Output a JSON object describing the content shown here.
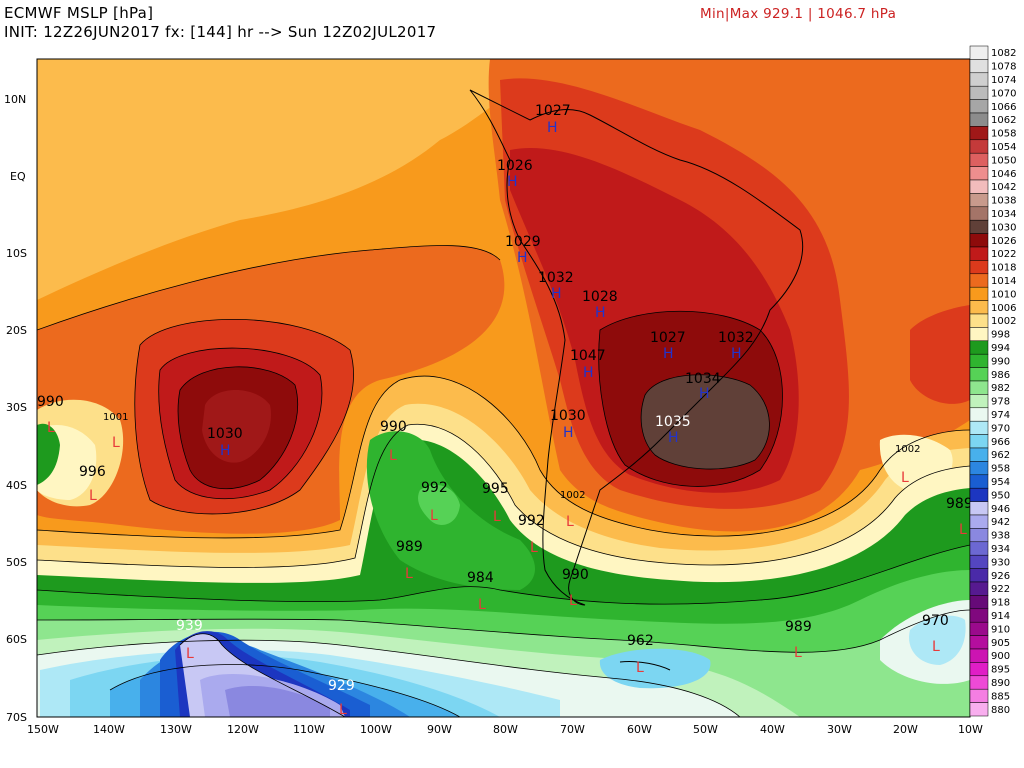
{
  "header": {
    "title": "ECMWF MSLP [hPa]",
    "init": "INIT: 12Z26JUN2017 fx: [144] hr --> Sun 12Z02JUL2017",
    "minmax": "Min|Max 929.1 | 1046.7 hPa"
  },
  "map": {
    "type": "contour map",
    "lon_range": [
      -150,
      -10
    ],
    "lat_range": [
      -70,
      15
    ],
    "lat_labels": [
      "10N",
      "EQ",
      "10S",
      "20S",
      "30S",
      "40S",
      "50S",
      "60S",
      "70S"
    ],
    "lon_labels": [
      "150W",
      "140W",
      "130W",
      "120W",
      "110W",
      "100W",
      "90W",
      "80W",
      "70W",
      "60W",
      "50W",
      "40W",
      "30W",
      "20W",
      "10W"
    ]
  },
  "pressure_labels": [
    {
      "text": "1027",
      "type": "H",
      "mark": "H"
    },
    {
      "text": "1026",
      "type": "H",
      "mark": "H"
    },
    {
      "text": "1029",
      "type": "H",
      "mark": "H"
    },
    {
      "text": "1032",
      "type": "H",
      "mark": "H"
    },
    {
      "text": "1028",
      "type": "H",
      "mark": "H"
    },
    {
      "text": "1027",
      "type": "H",
      "mark": "H"
    },
    {
      "text": "1032",
      "type": "H",
      "mark": "H"
    },
    {
      "text": "1047",
      "type": "H",
      "mark": "H"
    },
    {
      "text": "1034",
      "type": "H",
      "mark": "H"
    },
    {
      "text": "1030",
      "type": "H",
      "mark": "H"
    },
    {
      "text": "1035",
      "type": "H",
      "mark": "H"
    },
    {
      "text": "1030",
      "type": "H",
      "mark": "H"
    },
    {
      "text": "990",
      "type": "L",
      "mark": "L"
    },
    {
      "text": "1001",
      "type": "L",
      "mark": "L"
    },
    {
      "text": "996",
      "type": "L",
      "mark": "L"
    },
    {
      "text": "990",
      "type": "L",
      "mark": "L"
    },
    {
      "text": "992",
      "type": "L",
      "mark": "L"
    },
    {
      "text": "995",
      "type": "L",
      "mark": "L"
    },
    {
      "text": "1002",
      "type": "L",
      "mark": "L"
    },
    {
      "text": "992",
      "type": "L",
      "mark": "L"
    },
    {
      "text": "989",
      "type": "L",
      "mark": "L"
    },
    {
      "text": "984",
      "type": "L",
      "mark": "L"
    },
    {
      "text": "990",
      "type": "L",
      "mark": "L"
    },
    {
      "text": "1002",
      "type": "L",
      "mark": "L"
    },
    {
      "text": "989",
      "type": "L",
      "mark": "L"
    },
    {
      "text": "939",
      "type": "L",
      "mark": "L"
    },
    {
      "text": "929",
      "type": "L",
      "mark": "L"
    },
    {
      "text": "962",
      "type": "L",
      "mark": "L"
    },
    {
      "text": "989",
      "type": "L",
      "mark": "L"
    },
    {
      "text": "970",
      "type": "L",
      "mark": "L"
    }
  ],
  "colorbar": {
    "levels": [
      {
        "label": "1082",
        "color": "#efefef"
      },
      {
        "label": "1078",
        "color": "#e0e0e0"
      },
      {
        "label": "1074",
        "color": "#cfcfcf"
      },
      {
        "label": "1070",
        "color": "#bbbbbb"
      },
      {
        "label": "1066",
        "color": "#a6a6a6"
      },
      {
        "label": "1062",
        "color": "#8c8c8c"
      },
      {
        "label": "1058",
        "color": "#a01818"
      },
      {
        "label": "1054",
        "color": "#c43a3a"
      },
      {
        "label": "1050",
        "color": "#dd6060"
      },
      {
        "label": "1046",
        "color": "#ee8e8e"
      },
      {
        "label": "1042",
        "color": "#f2bcbc"
      },
      {
        "label": "1038",
        "color": "#c89a8c"
      },
      {
        "label": "1034",
        "color": "#a47468"
      },
      {
        "label": "1030",
        "color": "#604038"
      },
      {
        "label": "1026",
        "color": "#8e0b0b"
      },
      {
        "label": "1022",
        "color": "#c01a1a"
      },
      {
        "label": "1018",
        "color": "#dc3a1c"
      },
      {
        "label": "1014",
        "color": "#ec6a1e"
      },
      {
        "label": "1010",
        "color": "#f89a1c"
      },
      {
        "label": "1006",
        "color": "#fcbb4c"
      },
      {
        "label": "1002",
        "color": "#fde08a"
      },
      {
        "label": "998",
        "color": "#fff6c2"
      },
      {
        "label": "994",
        "color": "#1e9a1e"
      },
      {
        "label": "990",
        "color": "#2fb42f"
      },
      {
        "label": "986",
        "color": "#56d256"
      },
      {
        "label": "982",
        "color": "#8ee68e"
      },
      {
        "label": "978",
        "color": "#c0f2bc"
      },
      {
        "label": "974",
        "color": "#eaf8f0"
      },
      {
        "label": "970",
        "color": "#aee8f6"
      },
      {
        "label": "966",
        "color": "#7cd6f2"
      },
      {
        "label": "962",
        "color": "#48b0ec"
      },
      {
        "label": "958",
        "color": "#2c86e0"
      },
      {
        "label": "954",
        "color": "#1a5ed2"
      },
      {
        "label": "950",
        "color": "#1c36c0"
      },
      {
        "label": "946",
        "color": "#c8c8f4"
      },
      {
        "label": "942",
        "color": "#aaaaee"
      },
      {
        "label": "938",
        "color": "#8a88e0"
      },
      {
        "label": "934",
        "color": "#6c68d2"
      },
      {
        "label": "930",
        "color": "#5446c0"
      },
      {
        "label": "926",
        "color": "#4a2aa8"
      },
      {
        "label": "922",
        "color": "#561a90"
      },
      {
        "label": "918",
        "color": "#660a78"
      },
      {
        "label": "914",
        "color": "#80087e"
      },
      {
        "label": "910",
        "color": "#9a0a8c"
      },
      {
        "label": "905",
        "color": "#b40e9e"
      },
      {
        "label": "900",
        "color": "#cc14b2"
      },
      {
        "label": "895",
        "color": "#e01ec6"
      },
      {
        "label": "890",
        "color": "#ee4ad6"
      },
      {
        "label": "885",
        "color": "#f47ee2"
      },
      {
        "label": "880",
        "color": "#f8aeee"
      }
    ]
  },
  "colors": {
    "land_outline": "#000000",
    "contour_line": "#000000"
  }
}
